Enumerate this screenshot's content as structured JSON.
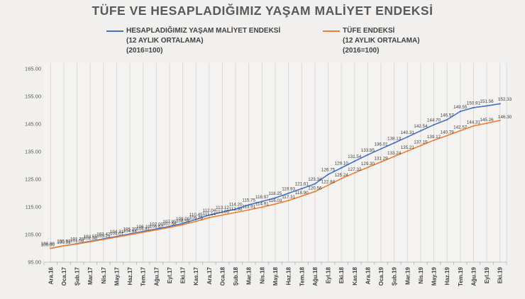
{
  "title": "TÜFE VE HESAPLADIĞIMIZ YAŞAM MALİYET ENDEKSİ",
  "legend": [
    {
      "line1": "HESAPLADIĞIMIZ YAŞAM MALİYET ENDEKSİ",
      "line2": "(12 AYLIK ORTALAMA)",
      "line3": "(2016=100)",
      "color": "#4472c4"
    },
    {
      "line1": "TÜFE ENDEKSİ",
      "line2": "(12 AYLIK ORTALAMA)",
      "line3": "(2016=100)",
      "color": "#ed7d31"
    }
  ],
  "colors": {
    "series_blue": "#4472c4",
    "series_orange": "#ed7d31",
    "grid": "#d9d9d9",
    "axis": "#bfbfbf",
    "tick_label": "#404040",
    "data_label": "#3f3f3f",
    "title": "#595959"
  },
  "chart_data": {
    "type": "line",
    "title": "TÜFE VE HESAPLADIĞIMIZ YAŞAM MALİYET ENDEKSİ",
    "xlabel": "",
    "ylabel": "",
    "ylim": [
      95,
      165
    ],
    "ytick_step": 10,
    "ytick_labels": [
      "95.00",
      "105.00",
      "115.00",
      "125.00",
      "135.00",
      "145.00",
      "155.00",
      "165.00"
    ],
    "grid": "vertical-only",
    "legend_position": "top",
    "data_labels": "above-points, 2 decimals",
    "categories": [
      "Ara.16",
      "Oca.17",
      "Şub.17",
      "Mar.17",
      "Nis.17",
      "May.17",
      "Haz.17",
      "Tem.17",
      "Ağu.17",
      "Eyl.17",
      "Eki.17",
      "Kas.17",
      "Ara.17",
      "Oca.18",
      "Şub.18",
      "Mar.18",
      "Nis.18",
      "May.18",
      "Haz.18",
      "Tem.18",
      "Ağu.18",
      "Eyl.18",
      "Eki.18",
      "Kas.18",
      "Ara.18",
      "Oca.19",
      "Şub.19",
      "Mar.19",
      "Nis.19",
      "May.19",
      "Haz.19",
      "Tem.19",
      "Ağu.19",
      "Eyl.19",
      "Eki.19"
    ],
    "series": [
      {
        "name": "HESAPLADIĞIMIZ YAŞAM MALİYET ENDEKSİ (12 AYLIK ORTALAMA) (2016=100)",
        "color": "#4472c4",
        "values": [
          100.0,
          100.93,
          101.7,
          102.55,
          103.42,
          104.31,
          105.2,
          106.1,
          107.0,
          107.95,
          109.0,
          110.45,
          112.04,
          113.12,
          114.2,
          115.75,
          116.97,
          118.25,
          119.93,
          121.61,
          123.34,
          126.75,
          129.1,
          131.54,
          133.85,
          136.01,
          138.13,
          140.31,
          142.54,
          144.7,
          146.57,
          149.55,
          150.91,
          151.56,
          152.33
        ]
      },
      {
        "name": "TÜFE ENDEKSİ (12 AYLIK ORTALAMA) (2016=100)",
        "color": "#ed7d31",
        "values": [
          100.0,
          100.91,
          101.58,
          102.38,
          103.21,
          104.07,
          104.94,
          105.81,
          106.67,
          107.56,
          108.55,
          109.75,
          111.14,
          112.05,
          112.98,
          113.91,
          114.91,
          116.03,
          117.31,
          118.9,
          120.56,
          122.84,
          125.24,
          127.32,
          129.3,
          131.29,
          133.24,
          135.21,
          137.19,
          139.12,
          140.79,
          142.57,
          144.31,
          145.26,
          146.3
        ]
      }
    ]
  }
}
